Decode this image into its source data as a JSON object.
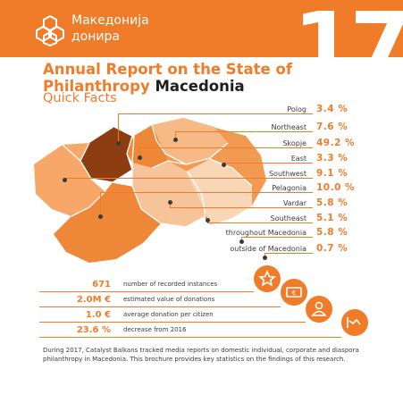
{
  "header": {
    "brand_line1": "Македонија",
    "brand_line2": "донира",
    "year_number": "17",
    "accent_color": "#f07c2a",
    "logo_icon": "lattice-logo-icon"
  },
  "title": {
    "line1": "Annual Report on the State of",
    "line2_orange": "Philanthropy",
    "line2_dark": "Macedonia",
    "subtitle": "Quick Facts"
  },
  "regions": [
    {
      "label": "Polog",
      "value": "3.4 %"
    },
    {
      "label": "Northeast",
      "value": "7.6 %"
    },
    {
      "label": "Skopje",
      "value": "49.2 %"
    },
    {
      "label": "East",
      "value": "3.3 %"
    },
    {
      "label": "Southwest",
      "value": "9.1 %"
    },
    {
      "label": "Pelagonia",
      "value": "10.0 %"
    },
    {
      "label": "Vardar",
      "value": "5.8 %"
    },
    {
      "label": "Southeast",
      "value": "5.1 %"
    },
    {
      "label": "throughout Macedonia",
      "value": "5.8 %"
    },
    {
      "label": "outside of Macedonia",
      "value": "0.7 %"
    }
  ],
  "facts": [
    {
      "value": "671",
      "label": "number of recorded instances",
      "icon": "star-icon"
    },
    {
      "value": "2.0M €",
      "label": "estimated value of donations",
      "icon": "banknote-icon"
    },
    {
      "value": "1.0 €",
      "label": "average donation per citizen",
      "icon": "person-icon"
    },
    {
      "value": "23.6 %",
      "label": "decrease from 2016",
      "icon": "trend-chart-icon"
    }
  ],
  "footer": {
    "text": "During 2017, Catalyst Balkans tracked media reports on domestic individual, corporate and diaspora philanthropy in Macedonia. This brochure provides key statistics on the findings of this research."
  }
}
